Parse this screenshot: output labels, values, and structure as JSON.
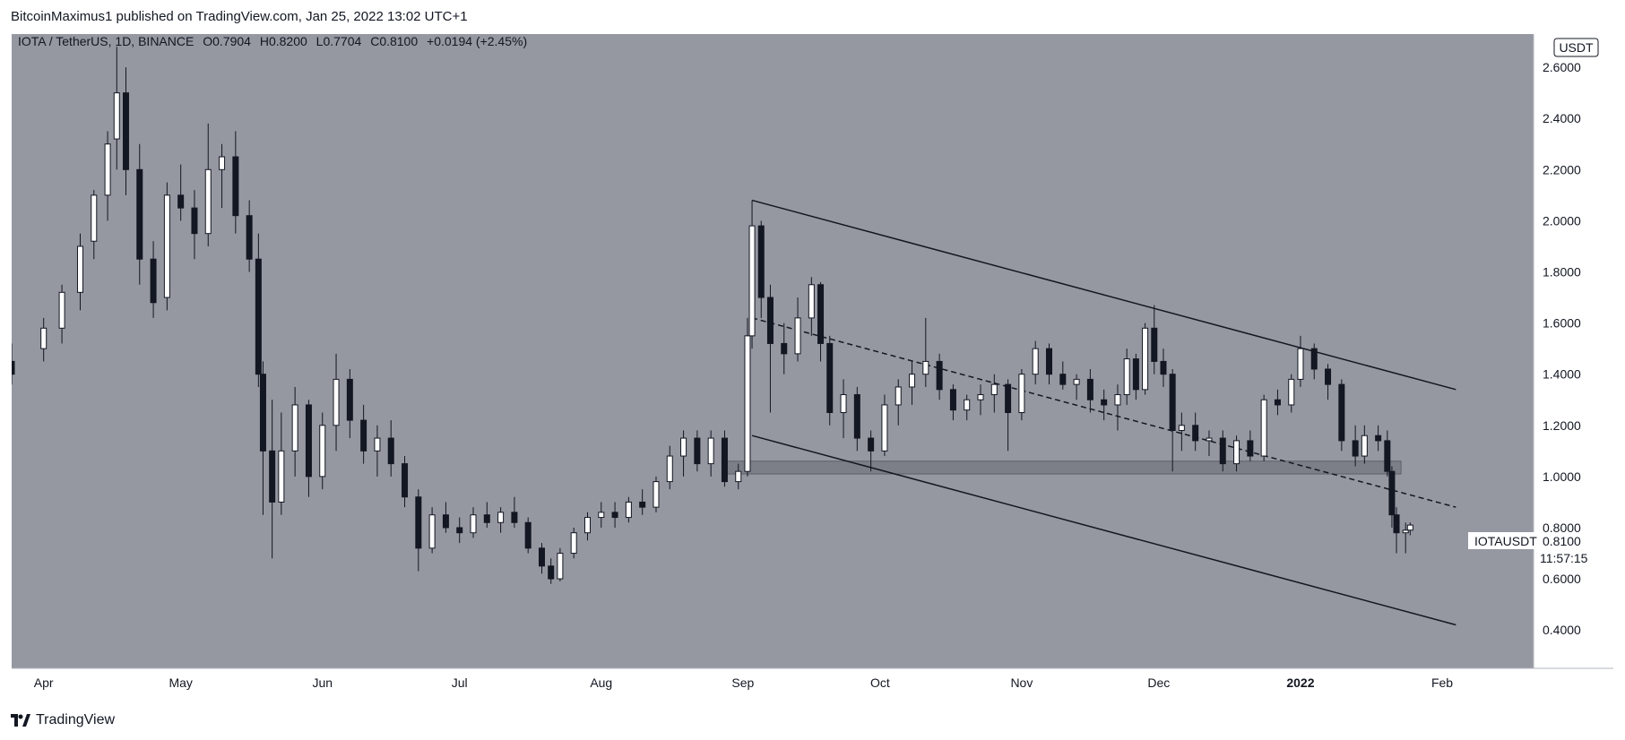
{
  "header": {
    "publisher_line": "BitcoinMaximus1 published on TradingView.com, Jan 25, 2022 13:02 UTC+1"
  },
  "footer": {
    "brand": "TradingView"
  },
  "legend": {
    "symbol": "IOTA / TetherUS, 1D, BINANCE",
    "o_label": "O",
    "o_value": "0.7904",
    "h_label": "H",
    "h_value": "0.8200",
    "l_label": "L",
    "l_value": "0.7704",
    "c_label": "C",
    "c_value": "0.8100",
    "change": "+0.0194 (+2.45%)"
  },
  "price_scale": {
    "currency": "USDT",
    "last_price": "0.8100",
    "countdown": "11:57:15",
    "symbol_tag": "IOTAUSDT"
  },
  "colors": {
    "background": "#9598a1",
    "up": "#ffffff",
    "down": "#131722",
    "zone": "#7c7f88"
  },
  "chart_data": {
    "type": "candlestick",
    "symbol": "IOTAUSDT",
    "timeframe": "1D",
    "exchange": "BINANCE",
    "y_ticks": [
      2.6,
      2.4,
      2.2,
      2.0,
      1.8,
      1.6,
      1.4,
      1.2,
      1.0,
      0.8,
      0.6,
      0.4
    ],
    "y_tick_labels": [
      "2.6000",
      "2.4000",
      "2.2000",
      "2.0000",
      "1.8000",
      "1.6000",
      "1.4000",
      "1.2000",
      "1.0000",
      "0.8000",
      "0.6000",
      "0.4000"
    ],
    "ylim": [
      0.25,
      2.73
    ],
    "x_labels": [
      {
        "date": "2021-04-01",
        "text": "Apr",
        "bold": false
      },
      {
        "date": "2021-05-01",
        "text": "May",
        "bold": false
      },
      {
        "date": "2021-06-01",
        "text": "Jun",
        "bold": false
      },
      {
        "date": "2021-07-01",
        "text": "Jul",
        "bold": false
      },
      {
        "date": "2021-08-01",
        "text": "Aug",
        "bold": false
      },
      {
        "date": "2021-09-01",
        "text": "Sep",
        "bold": false
      },
      {
        "date": "2021-10-01",
        "text": "Oct",
        "bold": false
      },
      {
        "date": "2021-11-01",
        "text": "Nov",
        "bold": false
      },
      {
        "date": "2021-12-01",
        "text": "Dec",
        "bold": false
      },
      {
        "date": "2022-01-01",
        "text": "2022",
        "bold": true
      },
      {
        "date": "2022-02-01",
        "text": "Feb",
        "bold": false
      }
    ],
    "xlim": [
      "2021-03-25",
      "2022-02-21"
    ],
    "candles": [
      {
        "date": "2021-03-25",
        "o": 1.45,
        "h": 1.52,
        "l": 1.36,
        "c": 1.4
      },
      {
        "date": "2021-04-01",
        "o": 1.5,
        "h": 1.62,
        "l": 1.45,
        "c": 1.58
      },
      {
        "date": "2021-04-05",
        "o": 1.58,
        "h": 1.75,
        "l": 1.52,
        "c": 1.72
      },
      {
        "date": "2021-04-09",
        "o": 1.72,
        "h": 1.95,
        "l": 1.65,
        "c": 1.9
      },
      {
        "date": "2021-04-12",
        "o": 1.92,
        "h": 2.12,
        "l": 1.85,
        "c": 2.1
      },
      {
        "date": "2021-04-15",
        "o": 2.1,
        "h": 2.35,
        "l": 2.0,
        "c": 2.3
      },
      {
        "date": "2021-04-17",
        "o": 2.32,
        "h": 2.68,
        "l": 2.2,
        "c": 2.5
      },
      {
        "date": "2021-04-19",
        "o": 2.5,
        "h": 2.6,
        "l": 2.1,
        "c": 2.2
      },
      {
        "date": "2021-04-22",
        "o": 2.2,
        "h": 2.3,
        "l": 1.75,
        "c": 1.85
      },
      {
        "date": "2021-04-25",
        "o": 1.85,
        "h": 1.92,
        "l": 1.62,
        "c": 1.68
      },
      {
        "date": "2021-04-28",
        "o": 1.7,
        "h": 2.15,
        "l": 1.65,
        "c": 2.1
      },
      {
        "date": "2021-05-01",
        "o": 2.1,
        "h": 2.22,
        "l": 2.0,
        "c": 2.05
      },
      {
        "date": "2021-05-04",
        "o": 2.05,
        "h": 2.12,
        "l": 1.85,
        "c": 1.95
      },
      {
        "date": "2021-05-07",
        "o": 1.95,
        "h": 2.38,
        "l": 1.9,
        "c": 2.2
      },
      {
        "date": "2021-05-10",
        "o": 2.2,
        "h": 2.3,
        "l": 2.05,
        "c": 2.25
      },
      {
        "date": "2021-05-13",
        "o": 2.25,
        "h": 2.35,
        "l": 1.95,
        "c": 2.02
      },
      {
        "date": "2021-05-16",
        "o": 2.02,
        "h": 2.08,
        "l": 1.8,
        "c": 1.85
      },
      {
        "date": "2021-05-18",
        "o": 1.85,
        "h": 1.95,
        "l": 1.35,
        "c": 1.4
      },
      {
        "date": "2021-05-19",
        "o": 1.4,
        "h": 1.45,
        "l": 0.85,
        "c": 1.1
      },
      {
        "date": "2021-05-21",
        "o": 1.1,
        "h": 1.3,
        "l": 0.68,
        "c": 0.9
      },
      {
        "date": "2021-05-23",
        "o": 0.9,
        "h": 1.25,
        "l": 0.85,
        "c": 1.1
      },
      {
        "date": "2021-05-26",
        "o": 1.1,
        "h": 1.35,
        "l": 1.0,
        "c": 1.28
      },
      {
        "date": "2021-05-29",
        "o": 1.28,
        "h": 1.3,
        "l": 0.92,
        "c": 1.0
      },
      {
        "date": "2021-06-01",
        "o": 1.0,
        "h": 1.25,
        "l": 0.95,
        "c": 1.2
      },
      {
        "date": "2021-06-04",
        "o": 1.2,
        "h": 1.48,
        "l": 1.1,
        "c": 1.38
      },
      {
        "date": "2021-06-07",
        "o": 1.38,
        "h": 1.42,
        "l": 1.15,
        "c": 1.22
      },
      {
        "date": "2021-06-10",
        "o": 1.22,
        "h": 1.28,
        "l": 1.05,
        "c": 1.1
      },
      {
        "date": "2021-06-13",
        "o": 1.1,
        "h": 1.2,
        "l": 1.0,
        "c": 1.15
      },
      {
        "date": "2021-06-16",
        "o": 1.15,
        "h": 1.22,
        "l": 1.0,
        "c": 1.05
      },
      {
        "date": "2021-06-19",
        "o": 1.05,
        "h": 1.08,
        "l": 0.88,
        "c": 0.92
      },
      {
        "date": "2021-06-22",
        "o": 0.92,
        "h": 0.95,
        "l": 0.63,
        "c": 0.72
      },
      {
        "date": "2021-06-25",
        "o": 0.72,
        "h": 0.88,
        "l": 0.7,
        "c": 0.85
      },
      {
        "date": "2021-06-28",
        "o": 0.85,
        "h": 0.9,
        "l": 0.78,
        "c": 0.8
      },
      {
        "date": "2021-07-01",
        "o": 0.8,
        "h": 0.84,
        "l": 0.74,
        "c": 0.78
      },
      {
        "date": "2021-07-04",
        "o": 0.78,
        "h": 0.88,
        "l": 0.76,
        "c": 0.85
      },
      {
        "date": "2021-07-07",
        "o": 0.85,
        "h": 0.9,
        "l": 0.8,
        "c": 0.82
      },
      {
        "date": "2021-07-10",
        "o": 0.82,
        "h": 0.88,
        "l": 0.78,
        "c": 0.86
      },
      {
        "date": "2021-07-13",
        "o": 0.86,
        "h": 0.92,
        "l": 0.8,
        "c": 0.82
      },
      {
        "date": "2021-07-16",
        "o": 0.82,
        "h": 0.84,
        "l": 0.7,
        "c": 0.72
      },
      {
        "date": "2021-07-19",
        "o": 0.72,
        "h": 0.74,
        "l": 0.62,
        "c": 0.65
      },
      {
        "date": "2021-07-21",
        "o": 0.65,
        "h": 0.68,
        "l": 0.58,
        "c": 0.6
      },
      {
        "date": "2021-07-23",
        "o": 0.6,
        "h": 0.72,
        "l": 0.59,
        "c": 0.7
      },
      {
        "date": "2021-07-26",
        "o": 0.7,
        "h": 0.8,
        "l": 0.68,
        "c": 0.78
      },
      {
        "date": "2021-07-29",
        "o": 0.78,
        "h": 0.86,
        "l": 0.75,
        "c": 0.84
      },
      {
        "date": "2021-08-01",
        "o": 0.84,
        "h": 0.9,
        "l": 0.8,
        "c": 0.86
      },
      {
        "date": "2021-08-04",
        "o": 0.86,
        "h": 0.9,
        "l": 0.8,
        "c": 0.84
      },
      {
        "date": "2021-08-07",
        "o": 0.84,
        "h": 0.92,
        "l": 0.82,
        "c": 0.9
      },
      {
        "date": "2021-08-10",
        "o": 0.9,
        "h": 0.95,
        "l": 0.85,
        "c": 0.88
      },
      {
        "date": "2021-08-13",
        "o": 0.88,
        "h": 1.0,
        "l": 0.86,
        "c": 0.98
      },
      {
        "date": "2021-08-16",
        "o": 0.98,
        "h": 1.12,
        "l": 0.95,
        "c": 1.08
      },
      {
        "date": "2021-08-19",
        "o": 1.08,
        "h": 1.18,
        "l": 1.0,
        "c": 1.15
      },
      {
        "date": "2021-08-22",
        "o": 1.15,
        "h": 1.18,
        "l": 1.02,
        "c": 1.05
      },
      {
        "date": "2021-08-25",
        "o": 1.05,
        "h": 1.18,
        "l": 1.0,
        "c": 1.15
      },
      {
        "date": "2021-08-28",
        "o": 1.15,
        "h": 1.18,
        "l": 0.96,
        "c": 0.98
      },
      {
        "date": "2021-08-31",
        "o": 0.98,
        "h": 1.05,
        "l": 0.95,
        "c": 1.02
      },
      {
        "date": "2021-09-02",
        "o": 1.02,
        "h": 1.62,
        "l": 1.0,
        "c": 1.55
      },
      {
        "date": "2021-09-03",
        "o": 1.55,
        "h": 2.08,
        "l": 1.5,
        "c": 1.98
      },
      {
        "date": "2021-09-05",
        "o": 1.98,
        "h": 2.0,
        "l": 1.62,
        "c": 1.7
      },
      {
        "date": "2021-09-07",
        "o": 1.7,
        "h": 1.75,
        "l": 1.25,
        "c": 1.52
      },
      {
        "date": "2021-09-10",
        "o": 1.52,
        "h": 1.6,
        "l": 1.4,
        "c": 1.48
      },
      {
        "date": "2021-09-13",
        "o": 1.48,
        "h": 1.7,
        "l": 1.45,
        "c": 1.62
      },
      {
        "date": "2021-09-16",
        "o": 1.62,
        "h": 1.78,
        "l": 1.55,
        "c": 1.75
      },
      {
        "date": "2021-09-18",
        "o": 1.75,
        "h": 1.76,
        "l": 1.45,
        "c": 1.52
      },
      {
        "date": "2021-09-20",
        "o": 1.52,
        "h": 1.55,
        "l": 1.2,
        "c": 1.25
      },
      {
        "date": "2021-09-23",
        "o": 1.25,
        "h": 1.38,
        "l": 1.15,
        "c": 1.32
      },
      {
        "date": "2021-09-26",
        "o": 1.32,
        "h": 1.35,
        "l": 1.1,
        "c": 1.15
      },
      {
        "date": "2021-09-29",
        "o": 1.15,
        "h": 1.18,
        "l": 1.02,
        "c": 1.1
      },
      {
        "date": "2021-10-02",
        "o": 1.1,
        "h": 1.32,
        "l": 1.08,
        "c": 1.28
      },
      {
        "date": "2021-10-05",
        "o": 1.28,
        "h": 1.38,
        "l": 1.2,
        "c": 1.35
      },
      {
        "date": "2021-10-08",
        "o": 1.35,
        "h": 1.45,
        "l": 1.28,
        "c": 1.4
      },
      {
        "date": "2021-10-11",
        "o": 1.4,
        "h": 1.62,
        "l": 1.35,
        "c": 1.45
      },
      {
        "date": "2021-10-14",
        "o": 1.45,
        "h": 1.48,
        "l": 1.3,
        "c": 1.34
      },
      {
        "date": "2021-10-17",
        "o": 1.34,
        "h": 1.36,
        "l": 1.22,
        "c": 1.26
      },
      {
        "date": "2021-10-20",
        "o": 1.26,
        "h": 1.32,
        "l": 1.22,
        "c": 1.3
      },
      {
        "date": "2021-10-23",
        "o": 1.3,
        "h": 1.36,
        "l": 1.24,
        "c": 1.32
      },
      {
        "date": "2021-10-26",
        "o": 1.32,
        "h": 1.4,
        "l": 1.25,
        "c": 1.36
      },
      {
        "date": "2021-10-29",
        "o": 1.36,
        "h": 1.38,
        "l": 1.1,
        "c": 1.25
      },
      {
        "date": "2021-11-01",
        "o": 1.25,
        "h": 1.42,
        "l": 1.22,
        "c": 1.4
      },
      {
        "date": "2021-11-04",
        "o": 1.4,
        "h": 1.53,
        "l": 1.36,
        "c": 1.5
      },
      {
        "date": "2021-11-07",
        "o": 1.5,
        "h": 1.52,
        "l": 1.36,
        "c": 1.4
      },
      {
        "date": "2021-11-10",
        "o": 1.4,
        "h": 1.45,
        "l": 1.34,
        "c": 1.36
      },
      {
        "date": "2021-11-13",
        "o": 1.36,
        "h": 1.4,
        "l": 1.3,
        "c": 1.38
      },
      {
        "date": "2021-11-16",
        "o": 1.38,
        "h": 1.42,
        "l": 1.25,
        "c": 1.3
      },
      {
        "date": "2021-11-19",
        "o": 1.3,
        "h": 1.34,
        "l": 1.22,
        "c": 1.28
      },
      {
        "date": "2021-11-22",
        "o": 1.28,
        "h": 1.36,
        "l": 1.18,
        "c": 1.32
      },
      {
        "date": "2021-11-24",
        "o": 1.32,
        "h": 1.5,
        "l": 1.28,
        "c": 1.46
      },
      {
        "date": "2021-11-26",
        "o": 1.46,
        "h": 1.48,
        "l": 1.3,
        "c": 1.34
      },
      {
        "date": "2021-11-28",
        "o": 1.34,
        "h": 1.6,
        "l": 1.32,
        "c": 1.58
      },
      {
        "date": "2021-11-30",
        "o": 1.58,
        "h": 1.67,
        "l": 1.4,
        "c": 1.45
      },
      {
        "date": "2021-12-02",
        "o": 1.45,
        "h": 1.5,
        "l": 1.35,
        "c": 1.4
      },
      {
        "date": "2021-12-04",
        "o": 1.4,
        "h": 1.42,
        "l": 1.02,
        "c": 1.18
      },
      {
        "date": "2021-12-06",
        "o": 1.18,
        "h": 1.25,
        "l": 1.1,
        "c": 1.2
      },
      {
        "date": "2021-12-09",
        "o": 1.2,
        "h": 1.25,
        "l": 1.1,
        "c": 1.14
      },
      {
        "date": "2021-12-12",
        "o": 1.14,
        "h": 1.18,
        "l": 1.08,
        "c": 1.15
      },
      {
        "date": "2021-12-15",
        "o": 1.15,
        "h": 1.18,
        "l": 1.02,
        "c": 1.05
      },
      {
        "date": "2021-12-18",
        "o": 1.05,
        "h": 1.16,
        "l": 1.02,
        "c": 1.14
      },
      {
        "date": "2021-12-21",
        "o": 1.14,
        "h": 1.18,
        "l": 1.06,
        "c": 1.08
      },
      {
        "date": "2021-12-24",
        "o": 1.08,
        "h": 1.32,
        "l": 1.06,
        "c": 1.3
      },
      {
        "date": "2021-12-27",
        "o": 1.3,
        "h": 1.34,
        "l": 1.24,
        "c": 1.28
      },
      {
        "date": "2021-12-30",
        "o": 1.28,
        "h": 1.4,
        "l": 1.25,
        "c": 1.38
      },
      {
        "date": "2022-01-01",
        "o": 1.38,
        "h": 1.55,
        "l": 1.35,
        "c": 1.5
      },
      {
        "date": "2022-01-04",
        "o": 1.5,
        "h": 1.52,
        "l": 1.38,
        "c": 1.42
      },
      {
        "date": "2022-01-07",
        "o": 1.42,
        "h": 1.44,
        "l": 1.3,
        "c": 1.36
      },
      {
        "date": "2022-01-10",
        "o": 1.36,
        "h": 1.38,
        "l": 1.1,
        "c": 1.14
      },
      {
        "date": "2022-01-13",
        "o": 1.14,
        "h": 1.2,
        "l": 1.04,
        "c": 1.08
      },
      {
        "date": "2022-01-15",
        "o": 1.08,
        "h": 1.2,
        "l": 1.05,
        "c": 1.16
      },
      {
        "date": "2022-01-18",
        "o": 1.16,
        "h": 1.2,
        "l": 1.1,
        "c": 1.14
      },
      {
        "date": "2022-01-20",
        "o": 1.14,
        "h": 1.18,
        "l": 1.0,
        "c": 1.02
      },
      {
        "date": "2022-01-21",
        "o": 1.02,
        "h": 1.04,
        "l": 0.8,
        "c": 0.85
      },
      {
        "date": "2022-01-22",
        "o": 0.85,
        "h": 0.88,
        "l": 0.7,
        "c": 0.78
      },
      {
        "date": "2022-01-24",
        "o": 0.78,
        "h": 0.82,
        "l": 0.7,
        "c": 0.79
      },
      {
        "date": "2022-01-25",
        "o": 0.7904,
        "h": 0.82,
        "l": 0.7704,
        "c": 0.81
      }
    ],
    "drawings": {
      "channel_upper": [
        {
          "date": "2021-09-03",
          "price": 2.08
        },
        {
          "date": "2022-02-04",
          "price": 1.34
        }
      ],
      "channel_lower": [
        {
          "date": "2021-09-03",
          "price": 1.16
        },
        {
          "date": "2022-02-04",
          "price": 0.42
        }
      ],
      "midline_dashed": [
        {
          "date": "2021-09-03",
          "price": 1.62
        },
        {
          "date": "2022-02-04",
          "price": 0.88
        }
      ],
      "support_zone": {
        "from": "2021-08-28",
        "to": "2022-01-23",
        "low": 1.01,
        "high": 1.06
      }
    }
  }
}
